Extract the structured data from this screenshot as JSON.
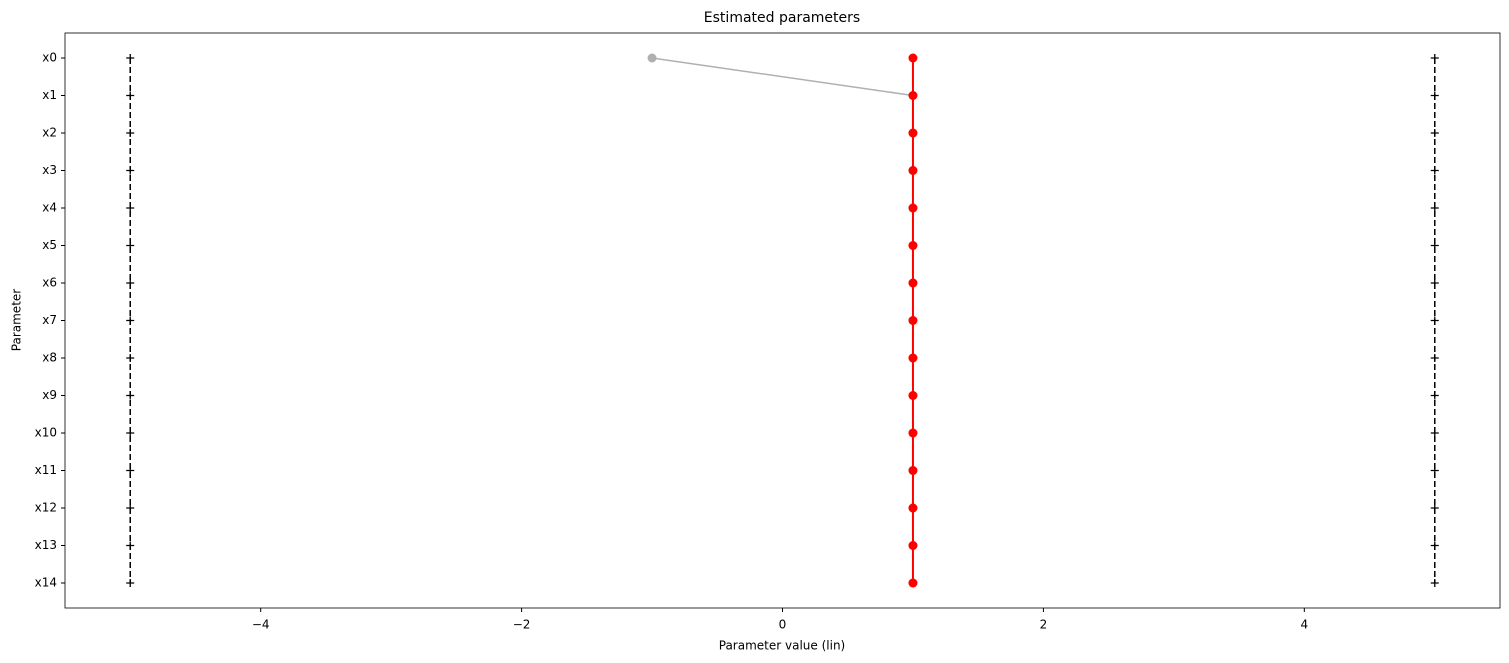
{
  "chart_data": {
    "type": "line",
    "orientation": "horizontal",
    "title": "Estimated parameters",
    "x_label": "Parameter value (lin)",
    "y_label": "Parameter",
    "categories": [
      "x0",
      "x1",
      "x2",
      "x3",
      "x4",
      "x5",
      "x6",
      "x7",
      "x8",
      "x9",
      "x10",
      "x11",
      "x12",
      "x13",
      "x14"
    ],
    "xlim": [
      -5.5,
      5.5
    ],
    "xticks": [
      {
        "value": -4,
        "label": "−4"
      },
      {
        "value": -2,
        "label": "−2"
      },
      0,
      2,
      4
    ],
    "series": [
      {
        "color": "#000000",
        "linestyle": "dashed",
        "marker": "plus",
        "values": [
          -5,
          -5,
          -5,
          -5,
          -5,
          -5,
          -5,
          -5,
          -5,
          -5,
          -5,
          -5,
          -5,
          -5,
          -5
        ]
      },
      {
        "color": "#000000",
        "linestyle": "dashed",
        "marker": "plus",
        "values": [
          5,
          5,
          5,
          5,
          5,
          5,
          5,
          5,
          5,
          5,
          5,
          5,
          5,
          5,
          5
        ]
      },
      {
        "color": "#b0b0b0",
        "linestyle": "solid",
        "marker": "circle",
        "values": [
          -1,
          1,
          1,
          1,
          1,
          1,
          1,
          1,
          1,
          1,
          1,
          1,
          1,
          1,
          1
        ]
      },
      {
        "color": "#ff0000",
        "linestyle": "solid",
        "marker": "circle",
        "values": [
          1,
          1,
          1,
          1,
          1,
          1,
          1,
          1,
          1,
          1,
          1,
          1,
          1,
          1,
          1
        ]
      }
    ]
  }
}
